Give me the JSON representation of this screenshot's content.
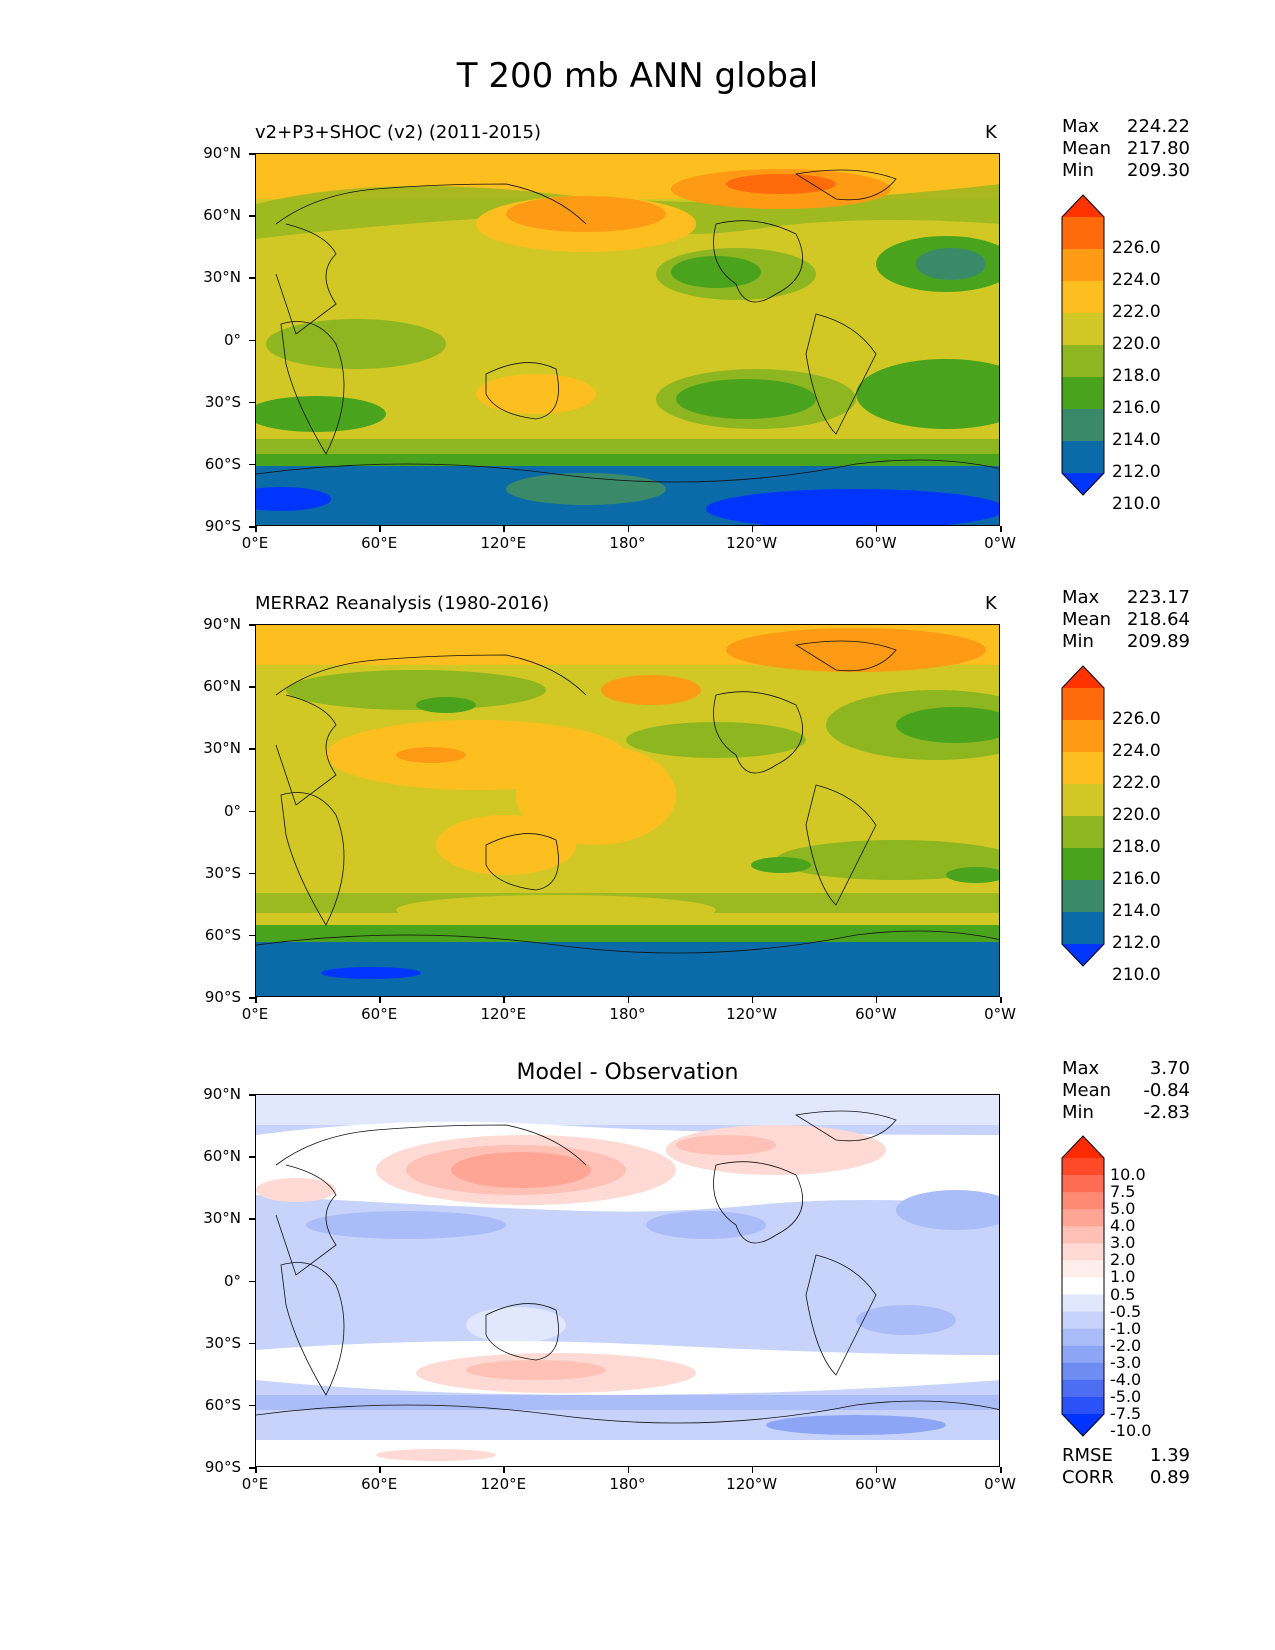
{
  "title": "T 200 mb ANN global",
  "axes": {
    "lat_ticks": [
      "90°N",
      "60°N",
      "30°N",
      "0°",
      "30°S",
      "60°S",
      "90°S"
    ],
    "lon_ticks": [
      "0°E",
      "60°E",
      "120°E",
      "180°",
      "120°W",
      "60°W",
      "0°W"
    ]
  },
  "chart_data": [
    {
      "type": "heatmap",
      "title": "v2+P3+SHOC (v2) (2011-2015)",
      "units": "K",
      "stats": {
        "max": "224.22",
        "mean": "217.80",
        "min": "209.30"
      },
      "levels": [
        "226.0",
        "224.0",
        "222.0",
        "220.0",
        "218.0",
        "216.0",
        "214.0",
        "212.0",
        "210.0"
      ],
      "colors": [
        "#ff3300",
        "#ff6a0a",
        "#ff9a14",
        "#fdbf20",
        "#d1c826",
        "#8db620",
        "#4aa31c",
        "#3a8a6a",
        "#0b6aa8",
        "#0034ff"
      ]
    },
    {
      "type": "heatmap",
      "title": "MERRA2 Reanalysis (1980-2016)",
      "units": "K",
      "stats": {
        "max": "223.17",
        "mean": "218.64",
        "min": "209.89"
      },
      "levels": [
        "226.0",
        "224.0",
        "222.0",
        "220.0",
        "218.0",
        "216.0",
        "214.0",
        "212.0",
        "210.0"
      ],
      "colors": [
        "#ff3300",
        "#ff6a0a",
        "#ff9a14",
        "#fdbf20",
        "#d1c826",
        "#8db620",
        "#4aa31c",
        "#3a8a6a",
        "#0b6aa8",
        "#0034ff"
      ]
    },
    {
      "type": "heatmap",
      "title": "Model - Observation",
      "stats": {
        "max": "3.70",
        "mean": "-0.84",
        "min": "-2.83"
      },
      "levels": [
        "10.0",
        "7.5",
        "5.0",
        "4.0",
        "3.0",
        "2.0",
        "1.0",
        "0.5",
        "-0.5",
        "-1.0",
        "-2.0",
        "-3.0",
        "-4.0",
        "-5.0",
        "-7.5",
        "-10.0"
      ],
      "colors": [
        "#ff2a00",
        "#ff4a2a",
        "#ff6c54",
        "#ff8a74",
        "#ffa596",
        "#ffc0b6",
        "#ffd9d3",
        "#ffeeeb",
        "#ffffff",
        "#e1e8fd",
        "#c7d3fb",
        "#aabdf8",
        "#8da5f5",
        "#6f8cf3",
        "#4d6ef3",
        "#2b52f6",
        "#0033ff"
      ],
      "rmse": "1.39",
      "corr": "0.89"
    }
  ],
  "labels": {
    "max": "Max",
    "mean": "Mean",
    "min": "Min",
    "rmse": "RMSE",
    "corr": "CORR"
  }
}
